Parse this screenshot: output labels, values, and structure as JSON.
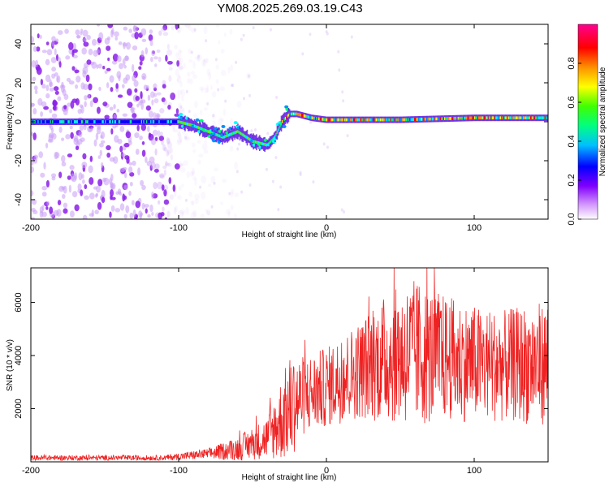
{
  "title": "YM08.2025.269.03.19.C43",
  "colors": {
    "trace": "#ee2222",
    "frame": "#000000"
  },
  "chart_data": [
    {
      "type": "heatmap",
      "xlabel": "Height of straight line (km)",
      "ylabel": "Frequency (Hz)",
      "xlim": [
        -200,
        150
      ],
      "ylim": [
        -50,
        50
      ],
      "xticks": [
        -200,
        -100,
        0,
        100
      ],
      "yticks": [
        40,
        20,
        0,
        -20,
        -40
      ],
      "colorbar": {
        "label": "Normalized spectral amplitude",
        "range": [
          0,
          1
        ],
        "ticks": [
          "0.0",
          "0.2",
          "0.4",
          "0.6",
          "0.8"
        ],
        "colormap": [
          "#ffffff",
          "#a000ff",
          "#0000ff",
          "#00ffff",
          "#00ff00",
          "#ffff00",
          "#ff8000",
          "#ff0000",
          "#ff00a0"
        ]
      },
      "ridge": [
        {
          "x": -200,
          "y": 0
        },
        {
          "x": -150,
          "y": 0
        },
        {
          "x": -110,
          "y": 0
        },
        {
          "x": -100,
          "y": 0
        },
        {
          "x": -90,
          "y": -2
        },
        {
          "x": -80,
          "y": -5
        },
        {
          "x": -70,
          "y": -8
        },
        {
          "x": -60,
          "y": -5
        },
        {
          "x": -50,
          "y": -10
        },
        {
          "x": -40,
          "y": -12
        },
        {
          "x": -35,
          "y": -8
        },
        {
          "x": -30,
          "y": 0
        },
        {
          "x": -25,
          "y": 4
        },
        {
          "x": -20,
          "y": 4
        },
        {
          "x": -10,
          "y": 2
        },
        {
          "x": 0,
          "y": 1
        },
        {
          "x": 50,
          "y": 1
        },
        {
          "x": 100,
          "y": 2
        },
        {
          "x": 150,
          "y": 2
        }
      ],
      "noise_edge_x": -100
    },
    {
      "type": "line",
      "xlabel": "Height of straight line (km)",
      "ylabel": "SNR (10 * v/v)",
      "xlim": [
        -200,
        150
      ],
      "ylim": [
        0,
        7300
      ],
      "xticks": [
        -200,
        -100,
        0,
        100
      ],
      "yticks": [
        2000,
        4000,
        6000
      ],
      "envelope": [
        {
          "x": -200,
          "mean": 150,
          "amp": 100
        },
        {
          "x": -110,
          "mean": 150,
          "amp": 100
        },
        {
          "x": -80,
          "mean": 300,
          "amp": 200
        },
        {
          "x": -60,
          "mean": 500,
          "amp": 450
        },
        {
          "x": -40,
          "mean": 900,
          "amp": 800
        },
        {
          "x": -25,
          "mean": 2000,
          "amp": 2000
        },
        {
          "x": -15,
          "mean": 2500,
          "amp": 1500
        },
        {
          "x": 0,
          "mean": 2800,
          "amp": 1500
        },
        {
          "x": 20,
          "mean": 3400,
          "amp": 1800
        },
        {
          "x": 40,
          "mean": 3900,
          "amp": 2400
        },
        {
          "x": 60,
          "mean": 4100,
          "amp": 2800
        },
        {
          "x": 80,
          "mean": 3900,
          "amp": 2400
        },
        {
          "x": 100,
          "mean": 3700,
          "amp": 2200
        },
        {
          "x": 120,
          "mean": 3600,
          "amp": 2100
        },
        {
          "x": 140,
          "mean": 3700,
          "amp": 2300
        },
        {
          "x": 150,
          "mean": 3700,
          "amp": 2300
        }
      ]
    }
  ]
}
